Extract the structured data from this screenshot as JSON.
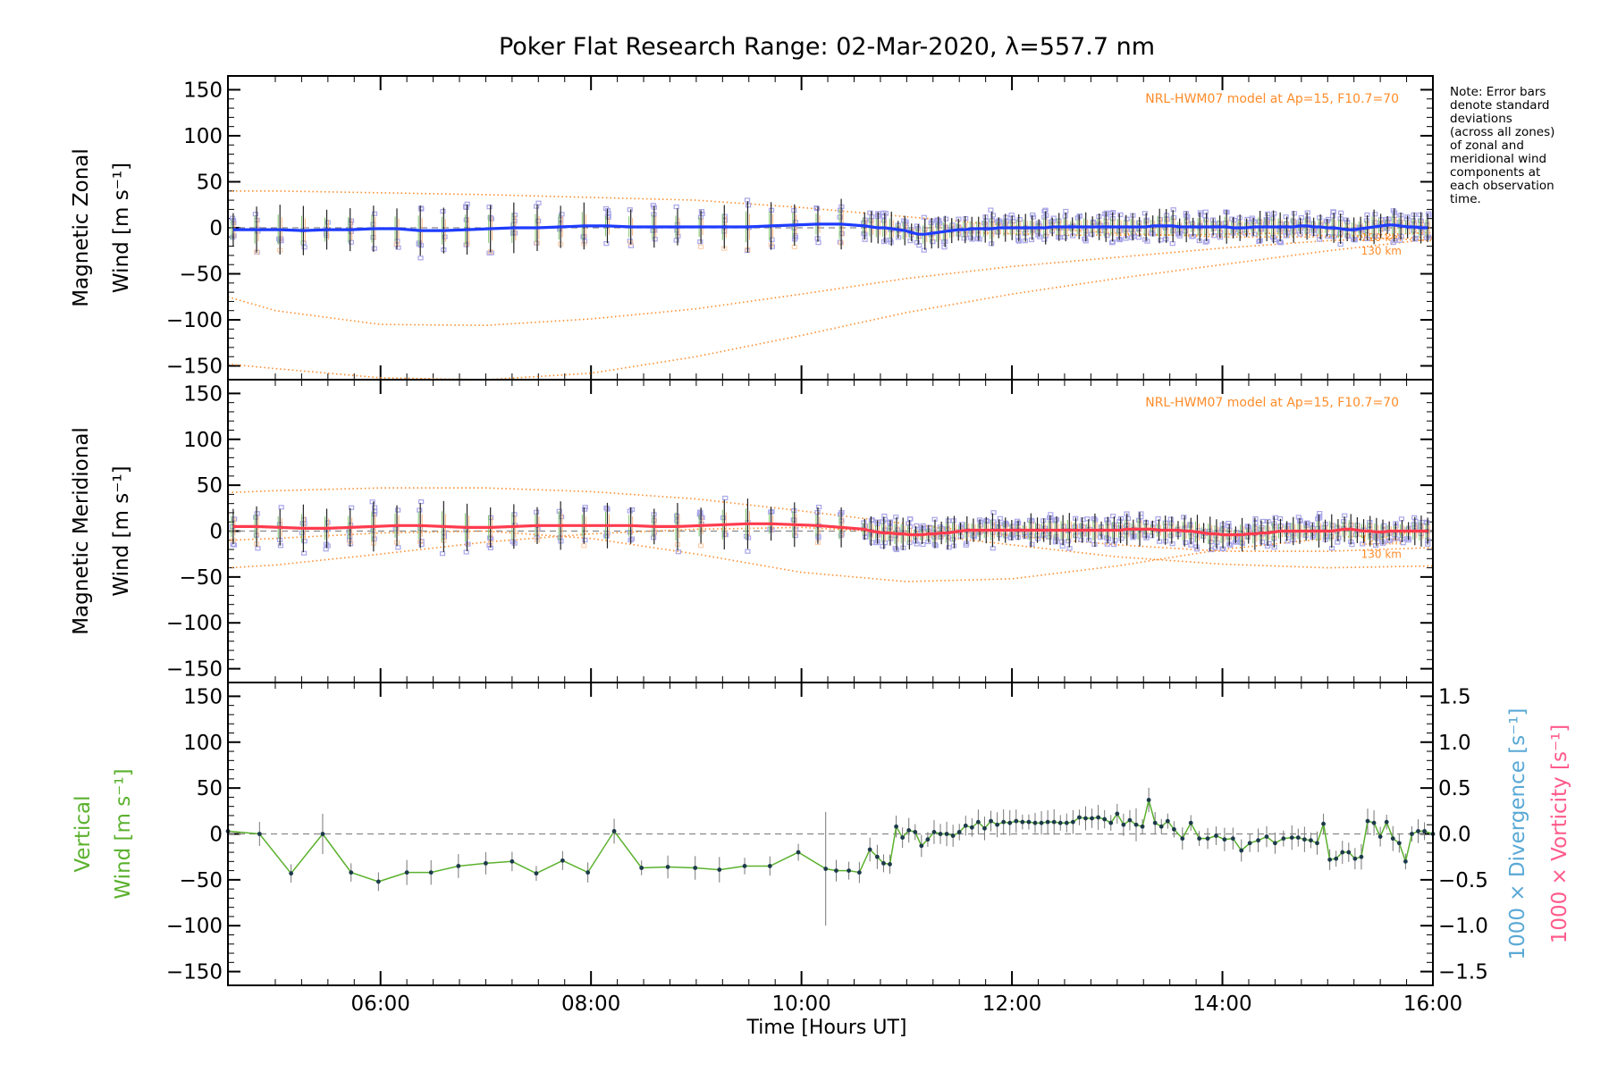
{
  "chart_data": {
    "type": "line",
    "title": "Poker Flat Research Range: 02-Mar-2020, λ=557.7 nm",
    "xlabel": "Time [Hours UT]",
    "xlim": [
      4.55,
      16.0
    ],
    "xticks": [
      "06:00",
      "08:00",
      "10:00",
      "12:00",
      "14:00",
      "16:00"
    ],
    "xtick_values": [
      6,
      8,
      10,
      12,
      14,
      16
    ],
    "note": [
      "Note: Error bars",
      "denote standard",
      "deviations",
      "(across all zones)",
      "of zonal and",
      "meridional wind",
      "components at",
      "each observation",
      "time."
    ],
    "colors": {
      "zonal": "#1f3cff",
      "meridional": "#ff3b4e",
      "vertical": "#5bb12e",
      "model": "#ff8c2a",
      "zones": "#a9a6e8",
      "divergence": "#5aa9d6",
      "vorticity": "#ff5a8a"
    },
    "panels": [
      {
        "name": "zonal",
        "ylabel_line1": "Magnetic Zonal",
        "ylabel_line2": "Wind [m s⁻¹]",
        "ylim": [
          -165,
          165
        ],
        "yticks": [
          "150",
          "100",
          "50",
          "0",
          "−50",
          "−100",
          "−150"
        ],
        "ytick_values": [
          150,
          100,
          50,
          0,
          -50,
          -100,
          -150
        ],
        "model_label": "NRL-HWM07 model at Ap=15, F10.7=70",
        "height_labels": [
          "120 km",
          "130 km"
        ],
        "series": {
          "name": "zonal",
          "values": [
            -2,
            -2,
            -2,
            -3,
            -2,
            -2,
            -1,
            -1,
            -3,
            -3,
            -2,
            -1,
            0,
            0,
            1,
            2,
            2,
            1,
            1,
            1,
            1,
            1,
            1,
            2,
            3,
            4,
            4,
            2,
            1,
            0,
            0,
            -1,
            -2,
            -3,
            -5,
            -7,
            -7,
            -6,
            -5,
            -4,
            -3,
            -2,
            -2,
            -1,
            -1,
            -1,
            -1,
            0,
            0,
            0,
            0,
            0,
            0,
            0,
            0,
            1,
            1,
            1,
            1,
            1,
            1,
            1,
            1,
            1,
            1,
            1,
            1,
            1,
            1,
            1,
            2,
            2,
            2,
            2,
            1,
            1,
            1,
            1,
            1,
            1,
            1,
            1,
            0,
            0,
            0,
            1,
            1,
            1,
            1,
            1,
            1,
            1,
            2,
            2,
            1,
            1,
            0,
            0,
            -1,
            -2,
            -2,
            -1,
            0,
            1,
            2,
            3,
            3,
            2,
            1,
            1,
            0,
            0
          ]
        },
        "model_curves": [
          {
            "name": "model-upper",
            "points": [
              [
                4.55,
                40
              ],
              [
                5,
                40
              ],
              [
                6,
                38
              ],
              [
                7,
                36
              ],
              [
                8,
                33
              ],
              [
                9,
                30
              ],
              [
                10,
                22
              ],
              [
                11,
                12
              ],
              [
                12,
                2
              ],
              [
                13,
                -6
              ],
              [
                14,
                -10
              ],
              [
                15,
                -10
              ],
              [
                16,
                -5
              ]
            ]
          },
          {
            "name": "model-120km",
            "points": [
              [
                4.55,
                -75
              ],
              [
                5,
                -90
              ],
              [
                6,
                -105
              ],
              [
                7,
                -106
              ],
              [
                8,
                -99
              ],
              [
                9,
                -88
              ],
              [
                10,
                -72
              ],
              [
                11,
                -55
              ],
              [
                12,
                -42
              ],
              [
                13,
                -32
              ],
              [
                14,
                -22
              ],
              [
                15,
                -14
              ],
              [
                16,
                -10
              ]
            ]
          },
          {
            "name": "model-130km",
            "points": [
              [
                4.55,
                -148
              ],
              [
                5,
                -153
              ],
              [
                6,
                -163
              ],
              [
                7,
                -165
              ],
              [
                8,
                -158
              ],
              [
                9,
                -140
              ],
              [
                10,
                -117
              ],
              [
                11,
                -92
              ],
              [
                12,
                -72
              ],
              [
                13,
                -55
              ],
              [
                14,
                -40
              ],
              [
                15,
                -25
              ],
              [
                16,
                -12
              ]
            ]
          },
          {
            "name": "model-inner",
            "points": [
              [
                11.5,
                -5
              ],
              [
                12.5,
                -8
              ],
              [
                13.5,
                -8
              ],
              [
                14.5,
                -6
              ],
              [
                15.3,
                -10
              ],
              [
                16,
                -14
              ]
            ]
          }
        ]
      },
      {
        "name": "meridional",
        "ylabel_line1": "Magnetic Meridional",
        "ylabel_line2": "Wind [m s⁻¹]",
        "ylim": [
          -165,
          165
        ],
        "yticks": [
          "150",
          "100",
          "50",
          "0",
          "−50",
          "−100",
          "−150"
        ],
        "ytick_values": [
          150,
          100,
          50,
          0,
          -50,
          -100,
          -150
        ],
        "model_label": "NRL-HWM07 model at Ap=15, F10.7=70",
        "height_labels": [
          "120 km",
          "130 km"
        ],
        "series": {
          "name": "meridional",
          "values": [
            5,
            5,
            4,
            3,
            3,
            4,
            5,
            6,
            6,
            5,
            4,
            4,
            5,
            6,
            6,
            6,
            6,
            6,
            5,
            5,
            6,
            7,
            8,
            8,
            7,
            6,
            4,
            2,
            0,
            -1,
            -2,
            -2,
            -3,
            -3,
            -4,
            -4,
            -4,
            -3,
            -3,
            -2,
            -2,
            -1,
            0,
            1,
            1,
            1,
            1,
            1,
            1,
            1,
            1,
            1,
            1,
            1,
            1,
            1,
            1,
            1,
            1,
            1,
            1,
            1,
            1,
            1,
            1,
            1,
            1,
            1,
            2,
            2,
            2,
            2,
            2,
            1,
            1,
            1,
            1,
            0,
            0,
            -1,
            -2,
            -3,
            -3,
            -4,
            -4,
            -4,
            -4,
            -3,
            -3,
            -2,
            -2,
            -1,
            0,
            0,
            0,
            0,
            0,
            0,
            0,
            0,
            0,
            1,
            2,
            2,
            1,
            0,
            0,
            -1,
            -1,
            0,
            0,
            0,
            0,
            0,
            0,
            0
          ]
        },
        "model_curves": [
          {
            "name": "model-upper",
            "points": [
              [
                4.55,
                42
              ],
              [
                5,
                44
              ],
              [
                6,
                47
              ],
              [
                7,
                47
              ],
              [
                8,
                43
              ],
              [
                9,
                35
              ],
              [
                10,
                22
              ],
              [
                11,
                8
              ],
              [
                12,
                -5
              ],
              [
                13,
                -15
              ],
              [
                14,
                -22
              ],
              [
                15,
                -22
              ],
              [
                16,
                -18
              ]
            ]
          },
          {
            "name": "model-120km",
            "points": [
              [
                4.55,
                -40
              ],
              [
                5,
                -37
              ],
              [
                6,
                -25
              ],
              [
                7,
                -12
              ],
              [
                8,
                -3
              ],
              [
                9,
                2
              ],
              [
                10,
                4
              ],
              [
                11,
                -2
              ],
              [
                12,
                -15
              ],
              [
                13,
                -28
              ],
              [
                14,
                -36
              ],
              [
                15,
                -40
              ],
              [
                16,
                -38
              ]
            ]
          },
          {
            "name": "model-130km",
            "points": [
              [
                4.55,
                -10
              ],
              [
                5,
                -8
              ],
              [
                6,
                -2
              ],
              [
                7,
                0
              ],
              [
                8,
                -8
              ],
              [
                9,
                -25
              ],
              [
                10,
                -45
              ],
              [
                11,
                -55
              ],
              [
                12,
                -52
              ],
              [
                13,
                -38
              ],
              [
                14,
                -20
              ],
              [
                15,
                -8
              ],
              [
                16,
                0
              ]
            ]
          }
        ]
      },
      {
        "name": "vertical",
        "ylabel_line1": "Vertical",
        "ylabel_line2": "Wind [m s⁻¹]",
        "ylim": [
          -165,
          165
        ],
        "yticks": [
          "150",
          "100",
          "50",
          "0",
          "−50",
          "−100",
          "−150"
        ],
        "ytick_values": [
          150,
          100,
          50,
          0,
          -50,
          -100,
          -150
        ],
        "right_axis": {
          "ylim": [
            -1.65,
            1.65
          ],
          "ticks": [
            "1.5",
            "1.0",
            "0.5",
            "0.0",
            "−0.5",
            "−1.0",
            "−1.5"
          ],
          "tick_values": [
            1.5,
            1.0,
            0.5,
            0.0,
            -0.5,
            -1.0,
            -1.5
          ],
          "label_divergence": "1000 × Divergence [s⁻¹]",
          "label_vorticity": "1000 × Vorticity [s⁻¹]"
        },
        "series": {
          "name": "vertical",
          "x": [
            4.55,
            4.85,
            5.15,
            5.45,
            5.72,
            5.98,
            6.25,
            6.48,
            6.74,
            7.0,
            7.25,
            7.48,
            7.73,
            7.97,
            8.22,
            8.48,
            8.73,
            8.99,
            9.22,
            9.46,
            9.7,
            9.97,
            10.23,
            10.33,
            10.45,
            10.55,
            10.65,
            10.72,
            10.78,
            10.84,
            10.9,
            10.96,
            11.02,
            11.08,
            11.14,
            11.2,
            11.26,
            11.32,
            11.38,
            11.44,
            11.5,
            11.56,
            11.62,
            11.68,
            11.74,
            11.8,
            11.86,
            11.92,
            11.98,
            12.04,
            12.1,
            12.16,
            12.22,
            12.28,
            12.34,
            12.4,
            12.46,
            12.52,
            12.58,
            12.64,
            12.7,
            12.76,
            12.82,
            12.88,
            12.94,
            13.0,
            13.06,
            13.12,
            13.18,
            13.24,
            13.3,
            13.36,
            13.42,
            13.48,
            13.54,
            13.62,
            13.7,
            13.78,
            13.86,
            13.94,
            14.02,
            14.1,
            14.18,
            14.26,
            14.34,
            14.42,
            14.5,
            14.58,
            14.66,
            14.72,
            14.78,
            14.84,
            14.9,
            14.96,
            15.02,
            15.08,
            15.14,
            15.2,
            15.26,
            15.32,
            15.38,
            15.44,
            15.5,
            15.56,
            15.62,
            15.68,
            15.74,
            15.8,
            15.86,
            15.92,
            16.0
          ],
          "values": [
            3,
            0,
            -43,
            0,
            -42,
            -52,
            -42,
            -42,
            -35,
            -32,
            -30,
            -43,
            -29,
            -42,
            3,
            -37,
            -36,
            -37,
            -39,
            -35,
            -35,
            -20,
            -38,
            -40,
            -40,
            -42,
            -17,
            -25,
            -32,
            -33,
            8,
            -4,
            4,
            2,
            -13,
            -6,
            2,
            0,
            0,
            -2,
            2,
            9,
            7,
            13,
            6,
            14,
            10,
            13,
            12,
            14,
            13,
            13,
            12,
            12,
            13,
            13,
            12,
            12,
            13,
            18,
            17,
            17,
            18,
            16,
            12,
            22,
            10,
            15,
            10,
            8,
            37,
            12,
            8,
            14,
            5,
            -5,
            12,
            -5,
            -5,
            -2,
            -6,
            -5,
            -18,
            -10,
            -7,
            -3,
            -10,
            -5,
            -4,
            -4,
            -6,
            -7,
            -10,
            11,
            -28,
            -27,
            -20,
            -20,
            -27,
            -25,
            14,
            12,
            -3,
            13,
            -5,
            -10,
            -30,
            0,
            3,
            3,
            0
          ]
        }
      }
    ]
  }
}
